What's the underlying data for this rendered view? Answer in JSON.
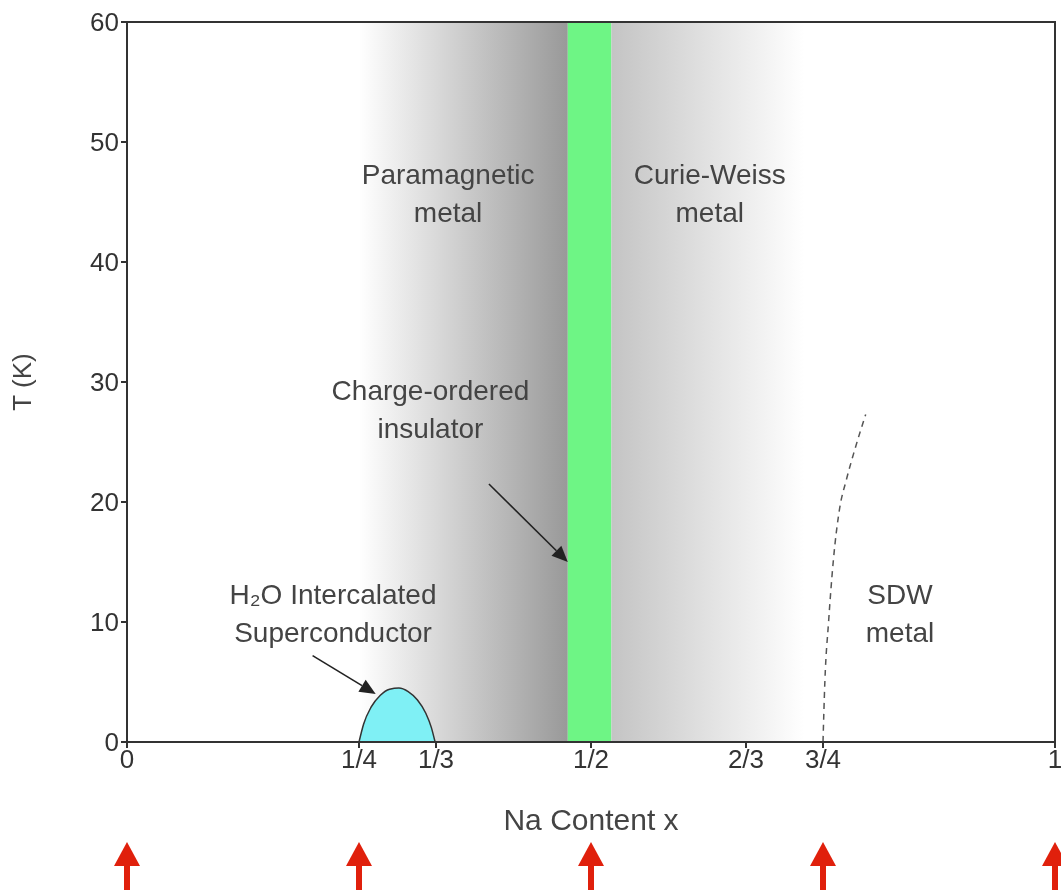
{
  "chart_data": {
    "type": "area",
    "xlabel": "Na Content  x",
    "ylabel": "T (K)",
    "xlim": [
      0,
      1
    ],
    "ylim": [
      0,
      60
    ],
    "xticks": [
      {
        "value": 0,
        "label": "0"
      },
      {
        "value": 0.25,
        "label": "1/4"
      },
      {
        "value": 0.333,
        "label": "1/3"
      },
      {
        "value": 0.5,
        "label": "1/2"
      },
      {
        "value": 0.667,
        "label": "2/3"
      },
      {
        "value": 0.75,
        "label": "3/4"
      },
      {
        "value": 1,
        "label": "1"
      }
    ],
    "yticks": [
      0,
      10,
      20,
      30,
      40,
      50,
      60
    ],
    "series": [
      {
        "color": "#7ff0f5",
        "x": [
          0.25,
          0.255,
          0.263,
          0.273,
          0.283,
          0.293,
          0.303,
          0.313,
          0.322,
          0.328,
          0.332
        ],
        "values": [
          0,
          1.5,
          2.9,
          3.9,
          4.4,
          4.5,
          4.2,
          3.5,
          2.4,
          1.2,
          0
        ]
      },
      {
        "type": "line",
        "color": "#555555",
        "line_style": "dashed",
        "x": [
          0.75,
          0.752,
          0.756,
          0.761,
          0.768,
          0.775,
          0.784,
          0.796
        ],
        "values": [
          0,
          5,
          10,
          15,
          19.5,
          21.8,
          24.3,
          27.3
        ]
      }
    ],
    "bands": [
      {
        "axis": "x",
        "from": 0.25,
        "to": 0.475,
        "color": "#999999"
      },
      {
        "axis": "x",
        "from": 0.475,
        "to": 0.522,
        "color": "#6ef585"
      },
      {
        "axis": "x",
        "from": 0.522,
        "to": 0.73,
        "color": "#c4c4c4"
      }
    ],
    "annotations": [
      "Paramagnetic metal",
      "Curie-Weiss metal",
      "Charge-ordered insulator",
      "H₂O Intercalated Superconductor",
      "SDW metal"
    ]
  }
}
